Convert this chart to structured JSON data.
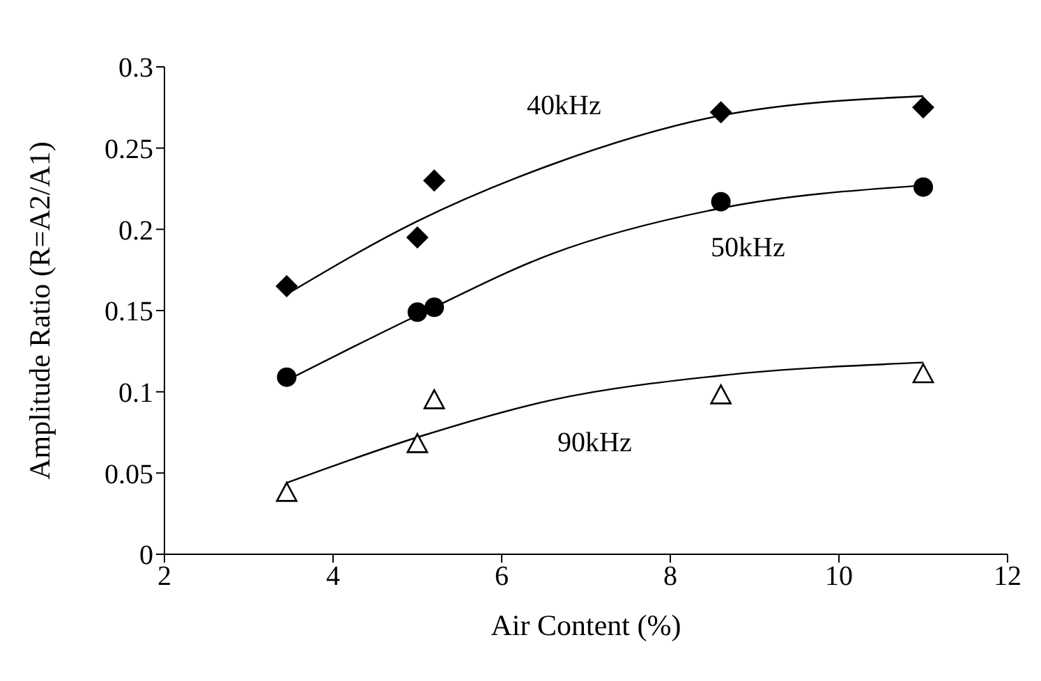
{
  "chart_data": {
    "type": "scatter",
    "xlabel": "Air Content (%)",
    "ylabel": "Amplitude Ratio (R=A2/A1)",
    "xlim": [
      2,
      12
    ],
    "xticks": [
      2,
      4,
      6,
      8,
      10,
      12
    ],
    "ylim": [
      0,
      0.3
    ],
    "yticks": [
      0,
      0.05,
      0.1,
      0.15,
      0.2,
      0.25,
      0.3
    ],
    "grid": false,
    "legend": false,
    "series": [
      {
        "marker": "diamond",
        "color": "#000000",
        "x": [
          3.45,
          5.0,
          5.2,
          8.6,
          11.0
        ],
        "values": [
          0.165,
          0.195,
          0.23,
          0.272,
          0.275
        ]
      },
      {
        "marker": "circle",
        "color": "#000000",
        "x": [
          3.45,
          5.0,
          5.2,
          8.6,
          11.0
        ],
        "values": [
          0.109,
          0.149,
          0.152,
          0.217,
          0.226
        ]
      },
      {
        "marker": "triangle",
        "color": "#000000",
        "x": [
          3.45,
          5.0,
          5.2,
          8.6,
          11.0
        ],
        "values": [
          0.038,
          0.068,
          0.095,
          0.098,
          0.111
        ]
      },
      {
        "type": "line",
        "marker": "none",
        "line_style": "solid",
        "color": "#000000",
        "x": [
          3.45,
          5.0,
          6.6,
          8.6,
          11.0
        ],
        "values": [
          0.16,
          0.205,
          0.24,
          0.27,
          0.282
        ]
      },
      {
        "type": "line",
        "marker": "none",
        "line_style": "solid",
        "color": "#000000",
        "x": [
          3.45,
          5.0,
          6.6,
          8.6,
          11.0
        ],
        "values": [
          0.107,
          0.147,
          0.185,
          0.213,
          0.227
        ]
      },
      {
        "type": "line",
        "marker": "none",
        "line_style": "solid",
        "color": "#000000",
        "x": [
          3.45,
          5.0,
          6.6,
          8.6,
          11.0
        ],
        "values": [
          0.044,
          0.072,
          0.095,
          0.11,
          0.118
        ]
      }
    ],
    "annotations": [
      "40kHz",
      "50kHz",
      "90kHz"
    ]
  }
}
